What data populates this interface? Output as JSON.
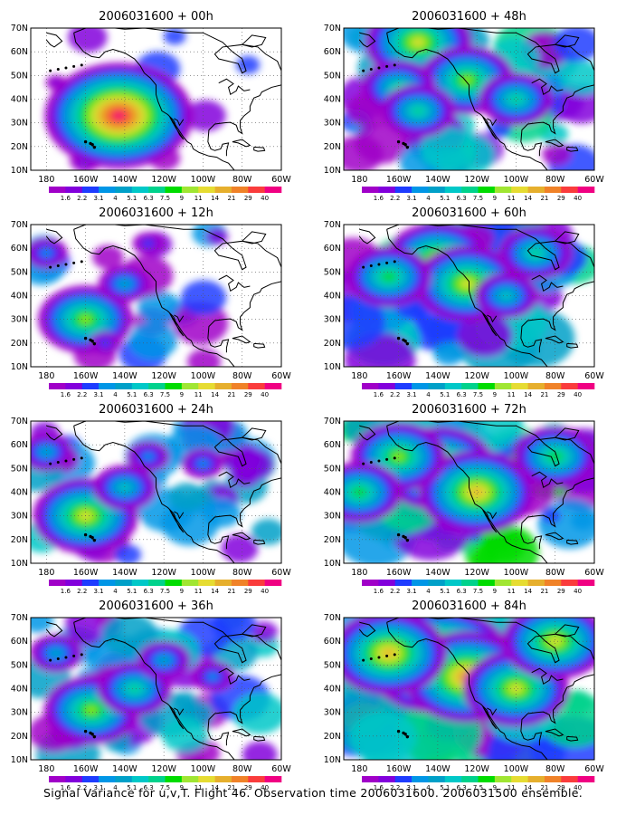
{
  "caption": "Signal Variance for u,v,T. Flight 46. Observation time 2006031600. 2006031500 ensemble.",
  "axes": {
    "lat_labels": [
      "70N",
      "60N",
      "50N",
      "40N",
      "30N",
      "20N",
      "10N"
    ],
    "lat_values": [
      70,
      60,
      50,
      40,
      30,
      20,
      10
    ],
    "lon_labels": [
      "180",
      "160W",
      "140W",
      "120W",
      "100W",
      "80W",
      "60W"
    ],
    "lon_values": [
      -180,
      -160,
      -140,
      -120,
      -100,
      -80,
      -60
    ],
    "xlim": [
      -188,
      -60
    ],
    "ylim": [
      10,
      70
    ]
  },
  "colorbar": {
    "labels": [
      "1.6",
      "2.2",
      "3.1",
      "4",
      "5.1",
      "6.3",
      "7.5",
      "9",
      "11",
      "14",
      "21",
      "29",
      "40"
    ],
    "colors": [
      "#a000c8",
      "#8200dc",
      "#1e3cff",
      "#0096e6",
      "#00a0c8",
      "#00c8c8",
      "#00d28c",
      "#00dc00",
      "#a0e632",
      "#e6dc32",
      "#e6af2d",
      "#f08228",
      "#fa3c3c",
      "#f00082"
    ]
  },
  "chart_data": [
    {
      "type": "heatmap",
      "title": "2006031600 + 00h",
      "xlabel": "",
      "ylabel": "",
      "intensity": 0.15,
      "features": [
        {
          "lon": -143,
          "lat": 38,
          "level": 4
        },
        {
          "lon": -163,
          "lat": 30,
          "level": 5
        },
        {
          "lon": -140,
          "lat": 42,
          "level": 3
        },
        {
          "lon": -160,
          "lat": 14,
          "level": 2
        },
        {
          "lon": -175,
          "lat": 47,
          "level": 1
        },
        {
          "lon": -143,
          "lat": 33,
          "level": 13
        }
      ]
    },
    {
      "type": "heatmap",
      "title": "2006031600 + 12h",
      "xlabel": "",
      "ylabel": "",
      "intensity": 0.3,
      "features": [
        {
          "lon": -160,
          "lat": 30,
          "level": 8
        },
        {
          "lon": -140,
          "lat": 45,
          "level": 4
        },
        {
          "lon": -180,
          "lat": 58,
          "level": 3
        },
        {
          "lon": -128,
          "lat": 62,
          "level": 2
        },
        {
          "lon": -150,
          "lat": 20,
          "level": 2
        }
      ]
    },
    {
      "type": "heatmap",
      "title": "2006031600 + 24h",
      "xlabel": "",
      "ylabel": "",
      "intensity": 0.45,
      "features": [
        {
          "lon": -160,
          "lat": 30,
          "level": 9
        },
        {
          "lon": -140,
          "lat": 42,
          "level": 5
        },
        {
          "lon": -180,
          "lat": 57,
          "level": 4
        },
        {
          "lon": -100,
          "lat": 52,
          "level": 3
        },
        {
          "lon": -128,
          "lat": 55,
          "level": 3
        }
      ]
    },
    {
      "type": "heatmap",
      "title": "2006031600 + 36h",
      "xlabel": "",
      "ylabel": "",
      "intensity": 0.55,
      "features": [
        {
          "lon": -157,
          "lat": 31,
          "level": 8
        },
        {
          "lon": -135,
          "lat": 40,
          "level": 6
        },
        {
          "lon": -175,
          "lat": 55,
          "level": 4
        },
        {
          "lon": -120,
          "lat": 52,
          "level": 4
        },
        {
          "lon": -95,
          "lat": 45,
          "level": 3
        }
      ]
    },
    {
      "type": "heatmap",
      "title": "2006031600 + 48h",
      "xlabel": "",
      "ylabel": "",
      "intensity": 0.65,
      "features": [
        {
          "lon": -150,
          "lat": 64,
          "level": 9
        },
        {
          "lon": -125,
          "lat": 48,
          "level": 8
        },
        {
          "lon": -160,
          "lat": 45,
          "level": 6
        },
        {
          "lon": -150,
          "lat": 35,
          "level": 6
        },
        {
          "lon": -100,
          "lat": 40,
          "level": 6
        }
      ]
    },
    {
      "type": "heatmap",
      "title": "2006031600 + 60h",
      "xlabel": "",
      "ylabel": "",
      "intensity": 0.75,
      "features": [
        {
          "lon": -140,
          "lat": 55,
          "level": 9
        },
        {
          "lon": -125,
          "lat": 45,
          "level": 9
        },
        {
          "lon": -165,
          "lat": 48,
          "level": 7
        },
        {
          "lon": -90,
          "lat": 58,
          "level": 6
        },
        {
          "lon": -105,
          "lat": 40,
          "level": 5
        }
      ]
    },
    {
      "type": "heatmap",
      "title": "2006031600 + 72h",
      "xlabel": "",
      "ylabel": "",
      "intensity": 0.85,
      "features": [
        {
          "lon": -140,
          "lat": 50,
          "level": 10
        },
        {
          "lon": -120,
          "lat": 40,
          "level": 10
        },
        {
          "lon": -160,
          "lat": 55,
          "level": 8
        },
        {
          "lon": -180,
          "lat": 40,
          "level": 7
        },
        {
          "lon": -80,
          "lat": 55,
          "level": 7
        }
      ]
    },
    {
      "type": "heatmap",
      "title": "2006031600 + 84h",
      "xlabel": "",
      "ylabel": "",
      "intensity": 1.0,
      "features": [
        {
          "lon": -140,
          "lat": 52,
          "level": 13
        },
        {
          "lon": -125,
          "lat": 45,
          "level": 11
        },
        {
          "lon": -165,
          "lat": 55,
          "level": 10
        },
        {
          "lon": -100,
          "lat": 40,
          "level": 9
        },
        {
          "lon": -80,
          "lat": 60,
          "level": 9
        }
      ]
    }
  ]
}
